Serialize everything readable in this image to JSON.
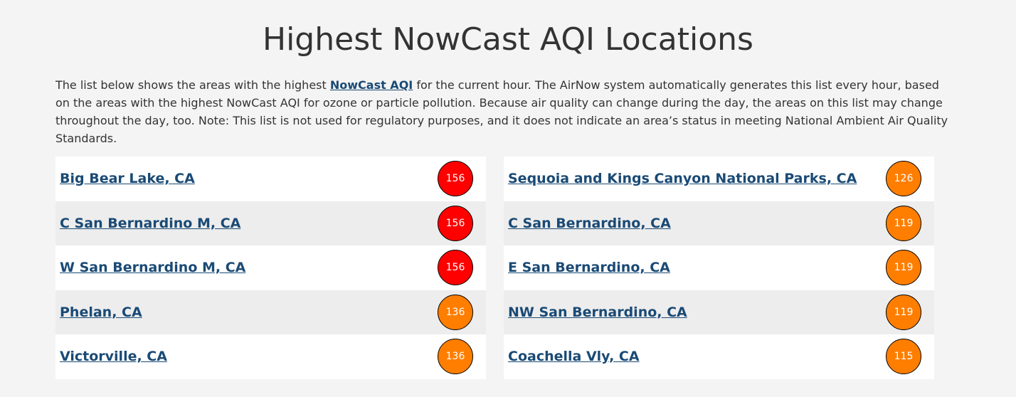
{
  "title": "Highest NowCast AQI Locations",
  "intro": {
    "before": "The list below shows the areas with the highest ",
    "link": "NowCast AQI",
    "after": " for the current hour. The AirNow system automatically generates this list every hour, based on the areas with the highest NowCast AQI for ozone or particle pollution. Because air quality can change during the day, the areas on this list may change throughout the day, too. Note: This list is not used for regulatory purposes, and it does not indicate an area’s status in meeting National Ambient Air Quality Standards."
  },
  "columns": [
    [
      {
        "name": "Big Bear Lake, CA",
        "aqi": 156,
        "color": "#ff0000"
      },
      {
        "name": "C San Bernardino M, CA",
        "aqi": 156,
        "color": "#ff0000"
      },
      {
        "name": "W San Bernardino M, CA",
        "aqi": 156,
        "color": "#ff0000"
      },
      {
        "name": "Phelan, CA",
        "aqi": 136,
        "color": "#ff7e00"
      },
      {
        "name": "Victorville, CA",
        "aqi": 136,
        "color": "#ff7e00"
      }
    ],
    [
      {
        "name": "Sequoia and Kings Canyon National Parks, CA",
        "aqi": 126,
        "color": "#ff7e00"
      },
      {
        "name": "C San Bernardino, CA",
        "aqi": 119,
        "color": "#ff7e00"
      },
      {
        "name": "E San Bernardino, CA",
        "aqi": 119,
        "color": "#ff7e00"
      },
      {
        "name": "NW San Bernardino, CA",
        "aqi": 119,
        "color": "#ff7e00"
      },
      {
        "name": "Coachella Vly, CA",
        "aqi": 115,
        "color": "#ff7e00"
      }
    ]
  ]
}
